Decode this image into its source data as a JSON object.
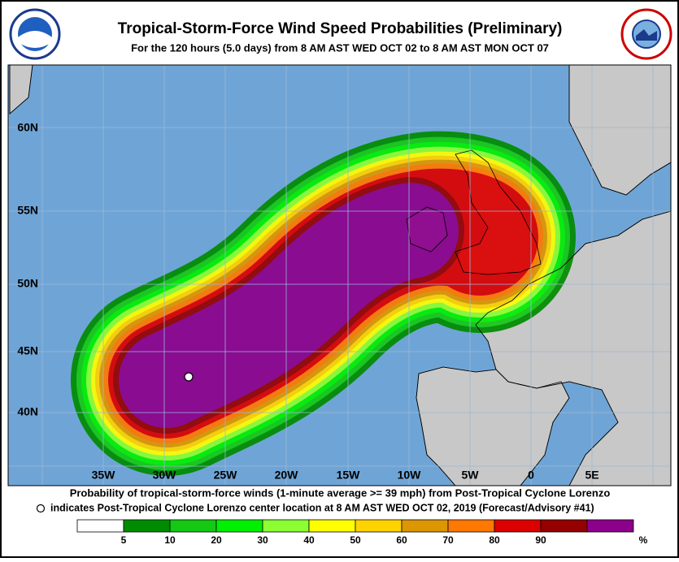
{
  "header": {
    "title": "Tropical-Storm-Force Wind Speed Probabilities (Preliminary)",
    "subtitle": "For the 120 hours (5.0 days) from 8 AM AST WED OCT 02 to 8 AM AST MON OCT 07"
  },
  "map": {
    "lat_labels": [
      "60N",
      "55N",
      "50N",
      "45N",
      "40N"
    ],
    "lon_labels": [
      "35W",
      "30W",
      "25W",
      "20W",
      "15W",
      "10W",
      "5W",
      "0",
      "5E"
    ]
  },
  "footer": {
    "line1": "Probability of tropical-storm-force winds (1-minute average >= 39 mph) from Post-Tropical Cyclone Lorenzo",
    "line2": "indicates Post-Tropical Cyclone Lorenzo center location at 8 AM AST WED OCT 02, 2019 (Forecast/Advisory #41)"
  },
  "legend": {
    "colors": [
      "#ffffff",
      "#008c00",
      "#14c814",
      "#00f000",
      "#8cff32",
      "#ffff00",
      "#ffd200",
      "#dc9600",
      "#ff7800",
      "#dc0000",
      "#960000",
      "#8c008c"
    ],
    "labels": [
      "5",
      "10",
      "20",
      "30",
      "40",
      "50",
      "60",
      "70",
      "80",
      "90"
    ],
    "unit": "%"
  }
}
